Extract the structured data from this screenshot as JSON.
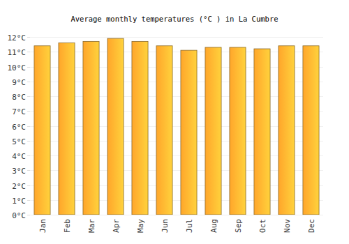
{
  "chart_data": {
    "type": "bar",
    "title": "Average monthly temperatures (°C ) in La Cumbre",
    "categories": [
      "Jan",
      "Feb",
      "Mar",
      "Apr",
      "May",
      "Jun",
      "Jul",
      "Aug",
      "Sep",
      "Oct",
      "Nov",
      "Dec"
    ],
    "values": [
      11.4,
      11.6,
      11.7,
      11.9,
      11.7,
      11.4,
      11.1,
      11.3,
      11.3,
      11.2,
      11.4,
      11.4
    ],
    "color": "#ffa62b",
    "ylim": [
      0,
      12
    ],
    "yticks": [
      {
        "value": 0,
        "label": "0°C"
      },
      {
        "value": 1,
        "label": "1°C"
      },
      {
        "value": 2,
        "label": "2°C"
      },
      {
        "value": 3,
        "label": "3°C"
      },
      {
        "value": 4,
        "label": "4°C"
      },
      {
        "value": 5,
        "label": "5°C"
      },
      {
        "value": 6,
        "label": "6°C"
      },
      {
        "value": 7,
        "label": "7°C"
      },
      {
        "value": 8,
        "label": "8°C"
      },
      {
        "value": 9,
        "label": "9°C"
      },
      {
        "value": 10,
        "label": "10°C"
      },
      {
        "value": 11,
        "label": "11°C"
      },
      {
        "value": 12,
        "label": "12°C"
      }
    ],
    "grid": true
  }
}
